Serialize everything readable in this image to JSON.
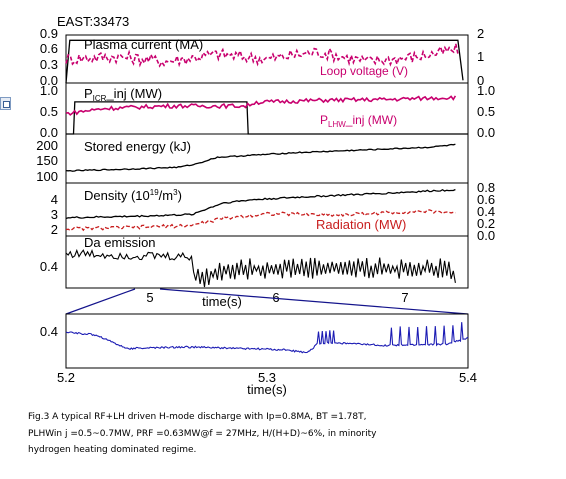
{
  "shot_title": "EAST:33473",
  "panels": [
    {
      "label": "Plasma current (MA)",
      "label2": "Loop voltage (V)",
      "left_ticks": [
        "0.9",
        "0.6",
        "0.3",
        "0.0"
      ],
      "right_ticks": [
        "2",
        "1",
        "0"
      ]
    },
    {
      "label_main": "P",
      "label_sub": "ICR",
      "label_tail": "_inj (MW)",
      "label2_main": "P",
      "label2_sub": "LHW",
      "label2_tail": "_inj (MW)",
      "left_ticks": [
        "1.0",
        "0.5",
        "0.0"
      ],
      "right_ticks": [
        "1.0",
        "0.5",
        "0.0"
      ]
    },
    {
      "label": "Stored energy (kJ)",
      "left_ticks": [
        "200",
        "150",
        "100"
      ]
    },
    {
      "label_main": "Density (10",
      "label_sup": "19",
      "label_tail": "/m",
      "label_sup2": "3",
      "label_end": ")",
      "label2": "Radiation (MW)",
      "left_ticks": [
        "4",
        "3",
        "2"
      ],
      "right_ticks": [
        "0.8",
        "0.6",
        "0.4",
        "0.2",
        "0.0"
      ]
    },
    {
      "label": "Da emission",
      "left_ticks": [
        "0.4"
      ]
    }
  ],
  "top_x_ticks": [
    "5",
    "6",
    "7"
  ],
  "top_xlabel": "time(s)",
  "zoom_x_ticks": [
    "5.2",
    "5.3",
    "5.4"
  ],
  "zoom_y_ticks": [
    "0.4"
  ],
  "zoom_xlabel": "time(s)",
  "caption": [
    "Fig.3 A typical RF+LH driven H-mode discharge with Ip=0.8MA, BT =1.78T,",
    "PLHWin j =0.5~0.7MW, PRF =0.63MW@f = 27MHz, H/(H+D)~6%, in minority",
    "hydrogen heating dominated regime."
  ],
  "colors": {
    "primary": "#000000",
    "secondary": "#c8006e",
    "radiation": "#c81e1e",
    "zoom": "#1c1cb4",
    "zoom_frame": "#14148c"
  },
  "chart_data": [
    {
      "type": "line",
      "title": "",
      "xlim": [
        4.2,
        7.4
      ],
      "ylim": [
        0,
        0.9
      ],
      "series": [
        {
          "name": "Plasma current (MA)",
          "x": [
            4.2,
            4.23,
            7.32,
            7.36
          ],
          "y": [
            0,
            0.8,
            0.8,
            0.05
          ]
        }
      ]
    },
    {
      "type": "line",
      "xlim": [
        4.2,
        7.4
      ],
      "ylim": [
        0,
        2
      ],
      "series": [
        {
          "name": "Loop voltage (V)",
          "x": [
            4.2,
            4.6,
            5.0,
            5.4,
            5.8,
            6.2,
            6.6,
            7.0,
            7.32
          ],
          "y": [
            1.0,
            1.1,
            0.9,
            1.2,
            1.0,
            1.3,
            0.9,
            1.1,
            1.4
          ]
        }
      ]
    },
    {
      "type": "line",
      "xlim": [
        4.2,
        7.4
      ],
      "ylim": [
        0,
        1.0
      ],
      "series": [
        {
          "name": "P_ICR_inj (MW)",
          "x": [
            4.2,
            4.26,
            4.27,
            5.64,
            5.65,
            7.4
          ],
          "y": [
            0,
            0,
            0.63,
            0.63,
            0,
            0
          ]
        }
      ]
    },
    {
      "type": "line",
      "xlim": [
        4.2,
        7.4
      ],
      "ylim": [
        0,
        1.0
      ],
      "series": [
        {
          "name": "P_LHW_inj (MW)",
          "x": [
            4.2,
            4.5,
            5.0,
            5.64,
            5.7,
            6.2,
            6.8,
            7.3
          ],
          "y": [
            0.4,
            0.5,
            0.55,
            0.55,
            0.62,
            0.66,
            0.68,
            0.72
          ]
        }
      ]
    },
    {
      "type": "line",
      "xlim": [
        4.2,
        7.4
      ],
      "ylim": [
        80,
        210
      ],
      "series": [
        {
          "name": "Stored energy (kJ)",
          "x": [
            4.2,
            4.8,
            5.1,
            5.23,
            5.4,
            6.0,
            6.6,
            7.1,
            7.3
          ],
          "y": [
            112,
            118,
            122,
            130,
            148,
            160,
            168,
            175,
            182
          ]
        }
      ]
    },
    {
      "type": "line",
      "xlim": [
        4.2,
        7.4
      ],
      "ylim": [
        1.8,
        5.0
      ],
      "series": [
        {
          "name": "Density",
          "x": [
            4.2,
            4.8,
            5.2,
            5.45,
            5.7,
            6.2,
            6.8,
            7.3
          ],
          "y": [
            2.9,
            3.0,
            3.1,
            3.8,
            4.0,
            4.2,
            4.4,
            4.6
          ]
        }
      ]
    },
    {
      "type": "line",
      "xlim": [
        4.2,
        7.4
      ],
      "ylim": [
        0,
        0.9
      ],
      "series": [
        {
          "name": "Radiation (MW)",
          "x": [
            4.2,
            4.8,
            5.2,
            5.45,
            5.8,
            6.4,
            7.0,
            7.3
          ],
          "y": [
            0.12,
            0.15,
            0.18,
            0.3,
            0.38,
            0.36,
            0.42,
            0.4
          ]
        }
      ]
    },
    {
      "type": "line",
      "xlim": [
        4.2,
        7.4
      ],
      "ylim": [
        0.2,
        0.62
      ],
      "series": [
        {
          "name": "Da emission",
          "x": [
            4.2,
            4.8,
            5.2,
            5.22,
            5.26,
            5.5,
            6.0,
            6.6,
            7.2,
            7.3
          ],
          "y": [
            0.48,
            0.46,
            0.45,
            0.32,
            0.27,
            0.34,
            0.35,
            0.35,
            0.34,
            0.3
          ]
        }
      ]
    },
    {
      "type": "line",
      "xlim": [
        5.2,
        5.4
      ],
      "ylim": [
        0.28,
        0.46
      ],
      "series": [
        {
          "name": "Da emission (zoom)",
          "x": [
            5.2,
            5.215,
            5.222,
            5.23,
            5.26,
            5.29,
            5.31,
            5.32,
            5.325,
            5.33,
            5.36,
            5.39,
            5.4
          ],
          "y": [
            0.4,
            0.39,
            0.37,
            0.345,
            0.35,
            0.345,
            0.34,
            0.33,
            0.36,
            0.365,
            0.355,
            0.36,
            0.38
          ]
        }
      ]
    }
  ]
}
